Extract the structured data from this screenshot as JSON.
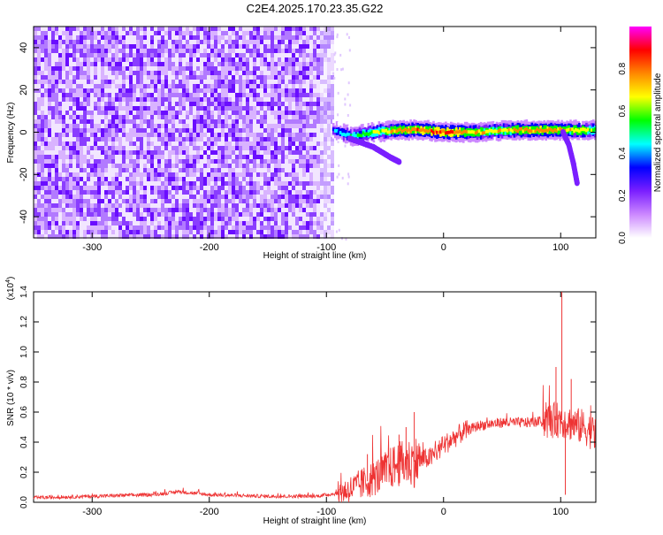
{
  "figure": {
    "title": "C2E4.2025.170.23.35.G22"
  },
  "chart_data": [
    {
      "type": "heatmap",
      "title": "C2E4.2025.170.23.35.G22",
      "xlabel": "Height of straight line (km)",
      "ylabel": "Frequency (Hz)",
      "xlim": [
        -350,
        130
      ],
      "ylim": [
        -50,
        50
      ],
      "x_ticks": [
        -300,
        -200,
        -100,
        0,
        100
      ],
      "y_ticks": [
        -40,
        -20,
        0,
        20,
        40
      ],
      "grid": false,
      "colorbar": {
        "label": "Normalized spectral amplitude",
        "range": [
          0,
          1
        ],
        "ticks": [
          0.0,
          0.2,
          0.4,
          0.6,
          0.8
        ],
        "colors": [
          "#ffffff",
          "#cc88ff",
          "#7a1fff",
          "#0000ff",
          "#00ffff",
          "#00ff00",
          "#ffff00",
          "#ff8800",
          "#ff0000",
          "#ff00ff"
        ]
      },
      "regions": [
        {
          "x_range": [
            -350,
            -95
          ],
          "freq_range": [
            -50,
            50
          ],
          "typical_amplitude": 0.1,
          "description_level": "noise"
        },
        {
          "x_range": [
            -95,
            130
          ],
          "freq_range": [
            -3,
            3
          ],
          "typical_amplitude": 0.6,
          "description_level": "signal"
        }
      ],
      "ridge": [
        {
          "x": -95,
          "f": 1,
          "amp": 0.35
        },
        {
          "x": -80,
          "f": -2,
          "amp": 0.5
        },
        {
          "x": -60,
          "f": 0,
          "amp": 0.6
        },
        {
          "x": -40,
          "f": 1,
          "amp": 0.75
        },
        {
          "x": -20,
          "f": 1,
          "amp": 0.8
        },
        {
          "x": 0,
          "f": 0,
          "amp": 0.85
        },
        {
          "x": 30,
          "f": 0,
          "amp": 0.7
        },
        {
          "x": 60,
          "f": 1,
          "amp": 0.7
        },
        {
          "x": 85,
          "f": 1,
          "amp": 0.8
        },
        {
          "x": 100,
          "f": 1,
          "amp": 0.75
        },
        {
          "x": 130,
          "f": 1,
          "amp": 0.6
        }
      ],
      "branches": [
        {
          "points": [
            {
              "x": -80,
              "f": -3
            },
            {
              "x": -60,
              "f": -7
            },
            {
              "x": -45,
              "f": -12
            },
            {
              "x": -38,
              "f": -14
            }
          ],
          "amp": 0.25
        },
        {
          "points": [
            {
              "x": 102,
              "f": 0
            },
            {
              "x": 107,
              "f": -6
            },
            {
              "x": 111,
              "f": -15
            },
            {
              "x": 114,
              "f": -24
            }
          ],
          "amp": 0.22
        }
      ]
    },
    {
      "type": "line",
      "xlabel": "Height of straight line (km)",
      "ylabel": "SNR (10 * v/v)",
      "y_multiplier_label": "(x10^4)",
      "y_multiplier_base": "(x10",
      "y_multiplier_exp": "4",
      "y_multiplier_close": ")",
      "xlim": [
        -350,
        130
      ],
      "ylim": [
        0,
        1.4
      ],
      "x_ticks": [
        -300,
        -200,
        -100,
        0,
        100
      ],
      "y_ticks": [
        0.0,
        0.2,
        0.4,
        0.6,
        0.8,
        1.0,
        1.2,
        1.4
      ],
      "grid": false,
      "series": [
        {
          "color": "#ee3333",
          "points": [
            {
              "x": -350,
              "y": 0.03
            },
            {
              "x": -300,
              "y": 0.04
            },
            {
              "x": -250,
              "y": 0.05
            },
            {
              "x": -225,
              "y": 0.07
            },
            {
              "x": -200,
              "y": 0.05
            },
            {
              "x": -150,
              "y": 0.04
            },
            {
              "x": -110,
              "y": 0.04
            },
            {
              "x": -90,
              "y": 0.06
            },
            {
              "x": -75,
              "y": 0.1
            },
            {
              "x": -65,
              "y": 0.14
            },
            {
              "x": -50,
              "y": 0.2
            },
            {
              "x": -40,
              "y": 0.25
            },
            {
              "x": -25,
              "y": 0.27
            },
            {
              "x": -10,
              "y": 0.3
            },
            {
              "x": 0,
              "y": 0.38
            },
            {
              "x": 15,
              "y": 0.46
            },
            {
              "x": 30,
              "y": 0.51
            },
            {
              "x": 50,
              "y": 0.53
            },
            {
              "x": 70,
              "y": 0.53
            },
            {
              "x": 90,
              "y": 0.54
            },
            {
              "x": 100,
              "y": 0.55
            },
            {
              "x": 110,
              "y": 0.52
            },
            {
              "x": 120,
              "y": 0.5
            },
            {
              "x": 130,
              "y": 0.45
            }
          ],
          "spikes": [
            {
              "x": 101,
              "y": 1.4
            },
            {
              "x": 104,
              "y": 0.05
            },
            {
              "x": 96,
              "y": 0.9
            },
            {
              "x": 109,
              "y": 0.82
            },
            {
              "x": -25,
              "y": 0.6
            },
            {
              "x": -32,
              "y": 0.5
            },
            {
              "x": -38,
              "y": 0.45
            },
            {
              "x": -65,
              "y": 0.32
            }
          ]
        }
      ]
    }
  ]
}
